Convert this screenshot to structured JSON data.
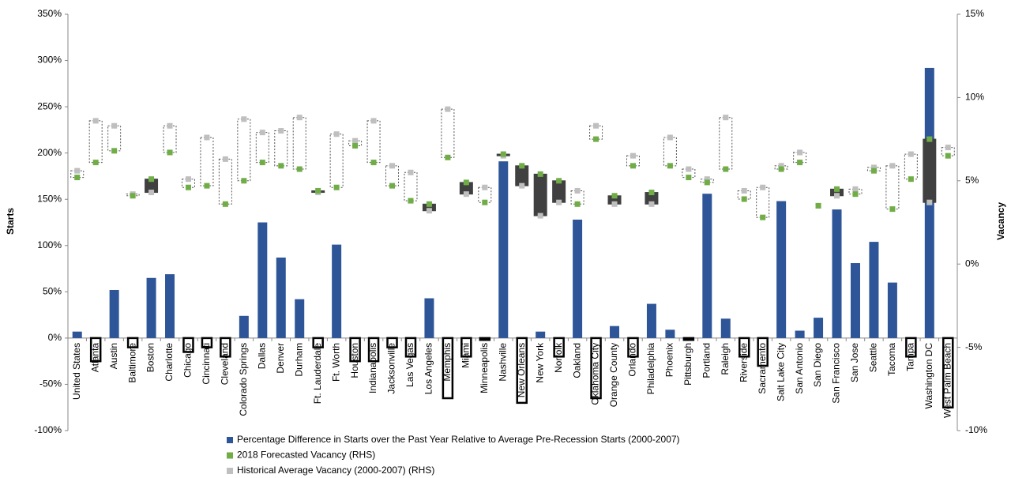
{
  "chart_data": {
    "type": "bar-range",
    "y_label": "Starts",
    "y2_label": "Vacancy",
    "categories": [
      "United States",
      "Atlanta",
      "Austin",
      "Baltimore",
      "Boston",
      "Charlotte",
      "Chicago",
      "Cincinnati",
      "Cleveland",
      "Colorado Springs",
      "Dallas",
      "Denver",
      "Durham",
      "Ft. Lauderdale",
      "Ft. Worth",
      "Houston",
      "Indianapolis",
      "Jacksonville",
      "Las Vegas",
      "Los Angeles",
      "Memphis",
      "Miami",
      "Minneapolis",
      "Nashville",
      "New Orleans",
      "New York",
      "Norfolk",
      "Oakland",
      "Oklahoma City",
      "Orange County",
      "Orlando",
      "Philadelphia",
      "Phoenix",
      "Pittsburgh",
      "Portland",
      "Raleigh",
      "Riverside",
      "Sacramento",
      "Salt Lake City",
      "San Antonio",
      "San Diego",
      "San Francisco",
      "San Jose",
      "Seattle",
      "Tacoma",
      "Tampa",
      "Washington DC",
      "West Palm Beach"
    ],
    "series": [
      {
        "name": "Percentage Difference in Starts over the Past Year Relative to Average Pre-Recession Starts (2000-2007)",
        "color": "#2e5597",
        "values": [
          7,
          -25,
          52,
          -10,
          65,
          69,
          -15,
          -10,
          -20,
          24,
          125,
          87,
          42,
          -10,
          101,
          -25,
          -25,
          -10,
          -20,
          43,
          -65,
          -20,
          -2,
          191,
          -70,
          7,
          -20,
          128,
          -65,
          13,
          -20,
          37,
          9,
          -2,
          156,
          21,
          -20,
          -30,
          148,
          8,
          22,
          139,
          81,
          104,
          60,
          -20,
          292,
          -75
        ]
      },
      {
        "name": "2018 Forecasted Vacancy (RHS)",
        "color": "#70ad47",
        "axis": "y2",
        "values": [
          5.2,
          6.1,
          6.8,
          4.1,
          5.1,
          6.7,
          4.6,
          4.7,
          3.6,
          5.0,
          6.1,
          5.9,
          5.7,
          4.4,
          4.6,
          7.1,
          6.1,
          4.7,
          3.8,
          3.6,
          6.4,
          4.9,
          3.7,
          6.6,
          5.9,
          5.4,
          5.0,
          3.6,
          7.5,
          4.1,
          5.9,
          4.3,
          5.9,
          5.2,
          4.9,
          5.7,
          3.9,
          2.8,
          5.7,
          6.1,
          3.5,
          4.5,
          4.2,
          5.6,
          3.3,
          5.1,
          7.5,
          6.5
        ]
      },
      {
        "name": "Historical Average Vacancy (2000-2007) (RHS)",
        "color": "#bfbfbf",
        "axis": "y2",
        "values": [
          5.6,
          8.6,
          8.3,
          4.2,
          4.3,
          8.3,
          5.1,
          7.6,
          6.3,
          8.7,
          7.9,
          8.0,
          8.8,
          4.3,
          7.8,
          7.4,
          8.6,
          5.9,
          5.5,
          3.2,
          9.3,
          4.2,
          4.6,
          6.5,
          4.7,
          2.9,
          3.7,
          4.4,
          8.3,
          3.6,
          6.5,
          3.6,
          7.6,
          5.7,
          5.1,
          8.8,
          4.4,
          4.6,
          5.9,
          6.7,
          3.5,
          4.1,
          4.5,
          5.8,
          5.9,
          6.6,
          3.7,
          7.0
        ]
      }
    ],
    "ylim": [
      -100,
      350
    ],
    "yticks": [
      {
        "value": -100,
        "label": "-100%"
      },
      {
        "value": -50,
        "label": "-50%"
      },
      {
        "value": 0,
        "label": "0%"
      },
      {
        "value": 50,
        "label": "50%"
      },
      {
        "value": 100,
        "label": "100%"
      },
      {
        "value": 150,
        "label": "150%"
      },
      {
        "value": 200,
        "label": "200%"
      },
      {
        "value": 250,
        "label": "250%"
      },
      {
        "value": 300,
        "label": "300%"
      },
      {
        "value": 350,
        "label": "350%"
      }
    ],
    "y2lim": [
      -10,
      15
    ],
    "y2ticks": [
      {
        "value": -10,
        "label": "-10%"
      },
      {
        "value": -5,
        "label": "-5%"
      },
      {
        "value": 0,
        "label": "0%"
      },
      {
        "value": 5,
        "label": "5%"
      },
      {
        "value": 10,
        "label": "10%"
      },
      {
        "value": 15,
        "label": "15%"
      }
    ],
    "grid": false,
    "legend": "bottom"
  }
}
